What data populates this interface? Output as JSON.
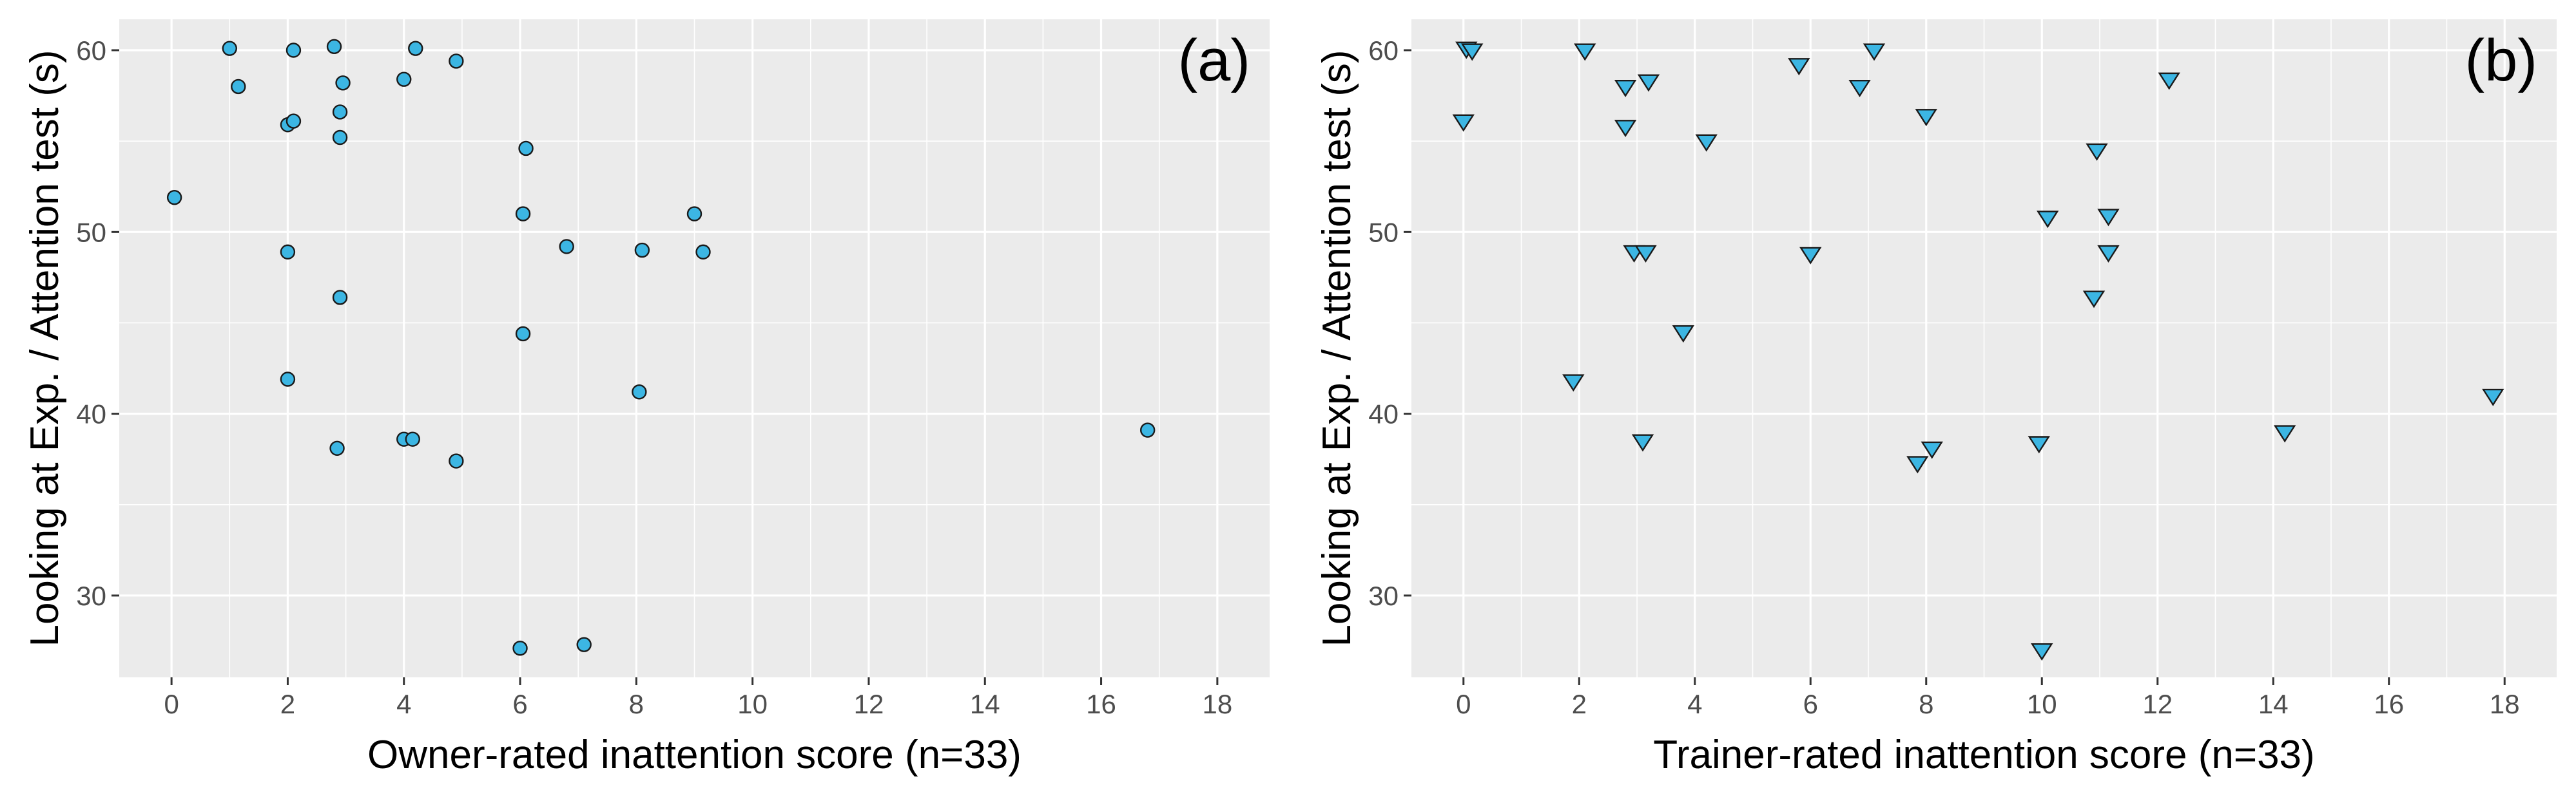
{
  "chart_data": [
    {
      "type": "scatter",
      "panel_label": "(a)",
      "xlabel": "Owner-rated inattention score (n=33)",
      "ylabel": "Looking at Exp. / Attention test (s)",
      "xlim": [
        -0.9,
        18.9
      ],
      "ylim": [
        25.5,
        61.7
      ],
      "xticks": [
        0,
        2,
        4,
        6,
        8,
        10,
        12,
        14,
        16,
        18
      ],
      "xtick_labels": [
        "0",
        "2",
        "4",
        "6",
        "8",
        "10",
        "12",
        "14",
        "16",
        "18"
      ],
      "yticks": [
        30,
        40,
        50,
        60
      ],
      "ytick_labels": [
        "30",
        "40",
        "50",
        "60"
      ],
      "marker": "circle",
      "color": "#3cb6e3",
      "grid": true,
      "points": [
        {
          "x": 0.05,
          "y": 51.9
        },
        {
          "x": 1.0,
          "y": 60.1
        },
        {
          "x": 1.15,
          "y": 58.0
        },
        {
          "x": 2.1,
          "y": 60.0
        },
        {
          "x": 2.8,
          "y": 60.2
        },
        {
          "x": 2.0,
          "y": 55.9
        },
        {
          "x": 2.1,
          "y": 56.1
        },
        {
          "x": 2.95,
          "y": 58.2
        },
        {
          "x": 2.9,
          "y": 56.6
        },
        {
          "x": 2.9,
          "y": 55.2
        },
        {
          "x": 2.0,
          "y": 48.9
        },
        {
          "x": 2.9,
          "y": 46.4
        },
        {
          "x": 2.0,
          "y": 41.9
        },
        {
          "x": 2.85,
          "y": 38.1
        },
        {
          "x": 4.0,
          "y": 58.4
        },
        {
          "x": 4.2,
          "y": 60.1
        },
        {
          "x": 4.0,
          "y": 38.6
        },
        {
          "x": 4.15,
          "y": 38.6
        },
        {
          "x": 4.9,
          "y": 59.4
        },
        {
          "x": 4.9,
          "y": 37.4
        },
        {
          "x": 6.1,
          "y": 54.6
        },
        {
          "x": 6.05,
          "y": 51.0
        },
        {
          "x": 6.05,
          "y": 44.4
        },
        {
          "x": 6.0,
          "y": 27.1
        },
        {
          "x": 6.8,
          "y": 49.2
        },
        {
          "x": 7.1,
          "y": 27.3
        },
        {
          "x": 8.1,
          "y": 49.0
        },
        {
          "x": 8.05,
          "y": 41.2
        },
        {
          "x": 9.0,
          "y": 51.0
        },
        {
          "x": 9.15,
          "y": 48.9
        },
        {
          "x": 16.8,
          "y": 39.1
        }
      ]
    },
    {
      "type": "scatter",
      "panel_label": "(b)",
      "xlabel": "Trainer-rated inattention score (n=33)",
      "ylabel": "Looking at Exp. / Attention test (s)",
      "xlim": [
        -0.9,
        18.9
      ],
      "ylim": [
        25.5,
        61.7
      ],
      "xticks": [
        0,
        2,
        4,
        6,
        8,
        10,
        12,
        14,
        16,
        18
      ],
      "xtick_labels": [
        "0",
        "2",
        "4",
        "6",
        "8",
        "10",
        "12",
        "14",
        "16",
        "18"
      ],
      "yticks": [
        30,
        40,
        50,
        60
      ],
      "ytick_labels": [
        "30",
        "40",
        "50",
        "60"
      ],
      "marker": "triangle-down",
      "color": "#3cb6e3",
      "grid": true,
      "points": [
        {
          "x": 0.05,
          "y": 60.1
        },
        {
          "x": 0.15,
          "y": 60.0
        },
        {
          "x": 0.0,
          "y": 56.1
        },
        {
          "x": 2.1,
          "y": 60.0
        },
        {
          "x": 2.8,
          "y": 58.0
        },
        {
          "x": 3.2,
          "y": 58.3
        },
        {
          "x": 2.8,
          "y": 55.8
        },
        {
          "x": 2.95,
          "y": 48.9
        },
        {
          "x": 3.15,
          "y": 48.9
        },
        {
          "x": 1.9,
          "y": 41.8
        },
        {
          "x": 3.1,
          "y": 38.5
        },
        {
          "x": 4.2,
          "y": 55.0
        },
        {
          "x": 3.8,
          "y": 44.5
        },
        {
          "x": 5.8,
          "y": 59.2
        },
        {
          "x": 6.0,
          "y": 48.8
        },
        {
          "x": 6.85,
          "y": 58.0
        },
        {
          "x": 7.1,
          "y": 60.0
        },
        {
          "x": 8.0,
          "y": 56.4
        },
        {
          "x": 7.85,
          "y": 37.3
        },
        {
          "x": 8.1,
          "y": 38.1
        },
        {
          "x": 9.95,
          "y": 38.4
        },
        {
          "x": 10.0,
          "y": 27.0
        },
        {
          "x": 10.1,
          "y": 50.8
        },
        {
          "x": 10.95,
          "y": 54.5
        },
        {
          "x": 10.9,
          "y": 46.4
        },
        {
          "x": 11.15,
          "y": 50.9
        },
        {
          "x": 11.15,
          "y": 48.9
        },
        {
          "x": 12.2,
          "y": 58.4
        },
        {
          "x": 14.2,
          "y": 39.0
        },
        {
          "x": 17.8,
          "y": 41.0
        }
      ]
    }
  ]
}
